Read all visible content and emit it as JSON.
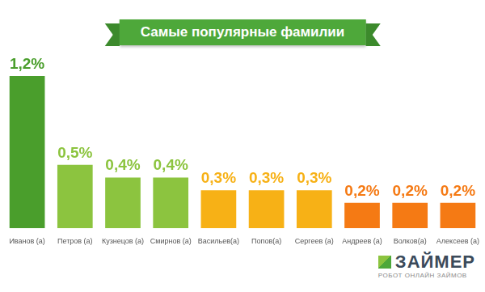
{
  "chart_data": {
    "type": "bar",
    "title": "Самые популярные фамилии",
    "categories": [
      "Иванов (а)",
      "Петров (а)",
      "Кузнецов (а)",
      "Смирнов (а)",
      "Васильев(а)",
      "Попов(а)",
      "Сергеев (а)",
      "Андреев (а)",
      "Волков(а)",
      "Алексеев (а)"
    ],
    "values": [
      1.2,
      0.5,
      0.4,
      0.4,
      0.3,
      0.3,
      0.3,
      0.2,
      0.2,
      0.2
    ],
    "value_labels": [
      "1,2%",
      "0,5%",
      "0,4%",
      "0,4%",
      "0,3%",
      "0,3%",
      "0,3%",
      "0,2%",
      "0,2%",
      "0,2%"
    ],
    "colors": [
      "#4a9e2c",
      "#8cc43f",
      "#8cc43f",
      "#8cc43f",
      "#f7b116",
      "#f7b116",
      "#f7b116",
      "#f57a14",
      "#f57a14",
      "#f57a14"
    ],
    "ylim": [
      0,
      1.2
    ],
    "grid": false,
    "data_labels": true,
    "tick_labels": "x",
    "annotations": [
      "ЗАЙМЕР",
      "РОБОТ ОНЛАЙН ЗАЙМОВ"
    ]
  }
}
